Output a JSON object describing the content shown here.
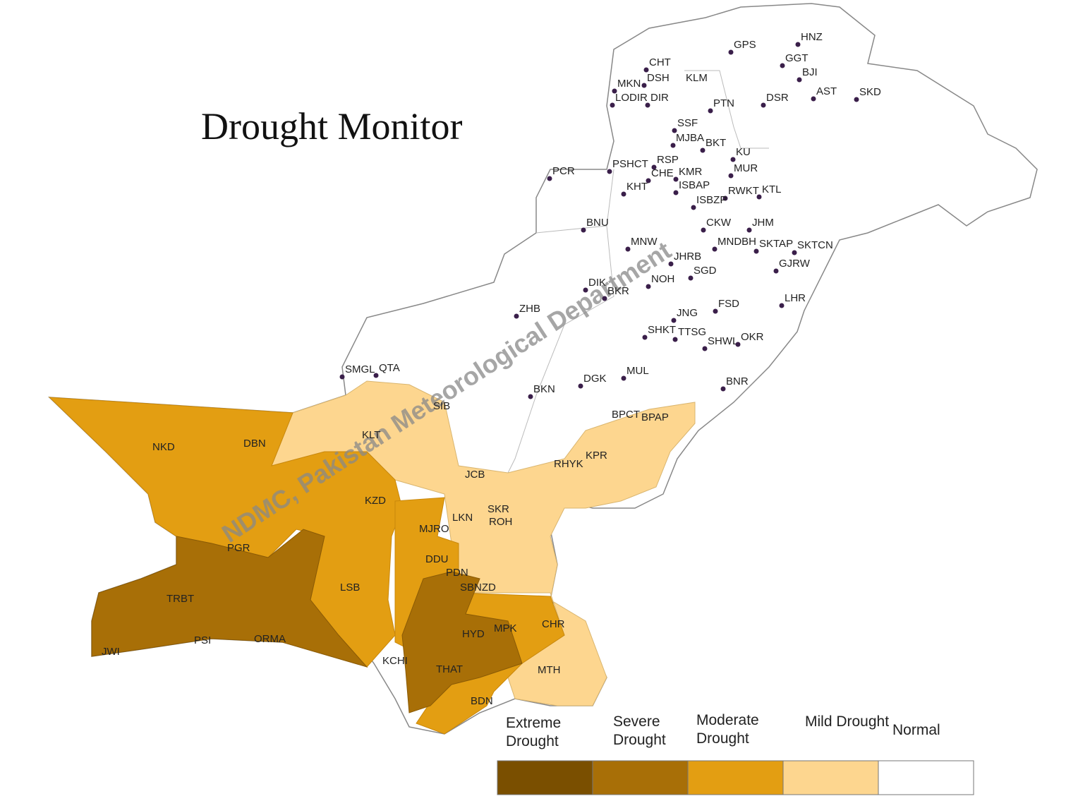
{
  "title": "Drought Monitor",
  "watermark": "NDMC, Pakistan Meteorological Department",
  "stations": [
    "HNZ",
    "GPS",
    "CHT",
    "GGT",
    "BJI",
    "MKN",
    "DSH",
    "KLM",
    "LODIR",
    "DIR",
    "AST",
    "SKD",
    "DSR",
    "PTN",
    "SSF",
    "MJBA",
    "BKT",
    "KU",
    "PSHCT",
    "RSP",
    "PCR",
    "CHE",
    "KMR",
    "MUR",
    "ISBAP",
    "RWKT",
    "KTL",
    "KHT",
    "ISBZP",
    "BNU",
    "CKW",
    "JHM",
    "MNDBH",
    "SKTAP",
    "SKTCN",
    "MNW",
    "JHRB",
    "GJRW",
    "NOH",
    "SGD",
    "DIK",
    "BKR",
    "LHR",
    "FSD",
    "ZHB",
    "JNG",
    "SHKT",
    "TTSG",
    "SHWL",
    "OKR",
    "SMGL",
    "QTA",
    "MUL",
    "DGK",
    "BNR",
    "BKN",
    "SIB",
    "BPCT",
    "BPAP",
    "KLT",
    "NKD",
    "DBN",
    "JCB",
    "KPR",
    "RHYK",
    "KZD",
    "SKR",
    "LKN",
    "ROH",
    "MJRO",
    "PGR",
    "DDU",
    "PDN",
    "SBNZD",
    "LSB",
    "TRBT",
    "CHR",
    "MPK",
    "HYD",
    "ORMA",
    "PSI",
    "JWI",
    "KCHI",
    "THAT",
    "MTH",
    "BDN"
  ],
  "legend": [
    {
      "label": "Extreme Drought",
      "color": "#7a4f00"
    },
    {
      "label": "Severe Drought",
      "color": "#a86f07"
    },
    {
      "label": "Moderate Drought",
      "color": "#e39e12"
    },
    {
      "label": "Mild Drought",
      "color": "#fdd68f"
    },
    {
      "label": "Normal",
      "color": "#ffffff"
    }
  ]
}
